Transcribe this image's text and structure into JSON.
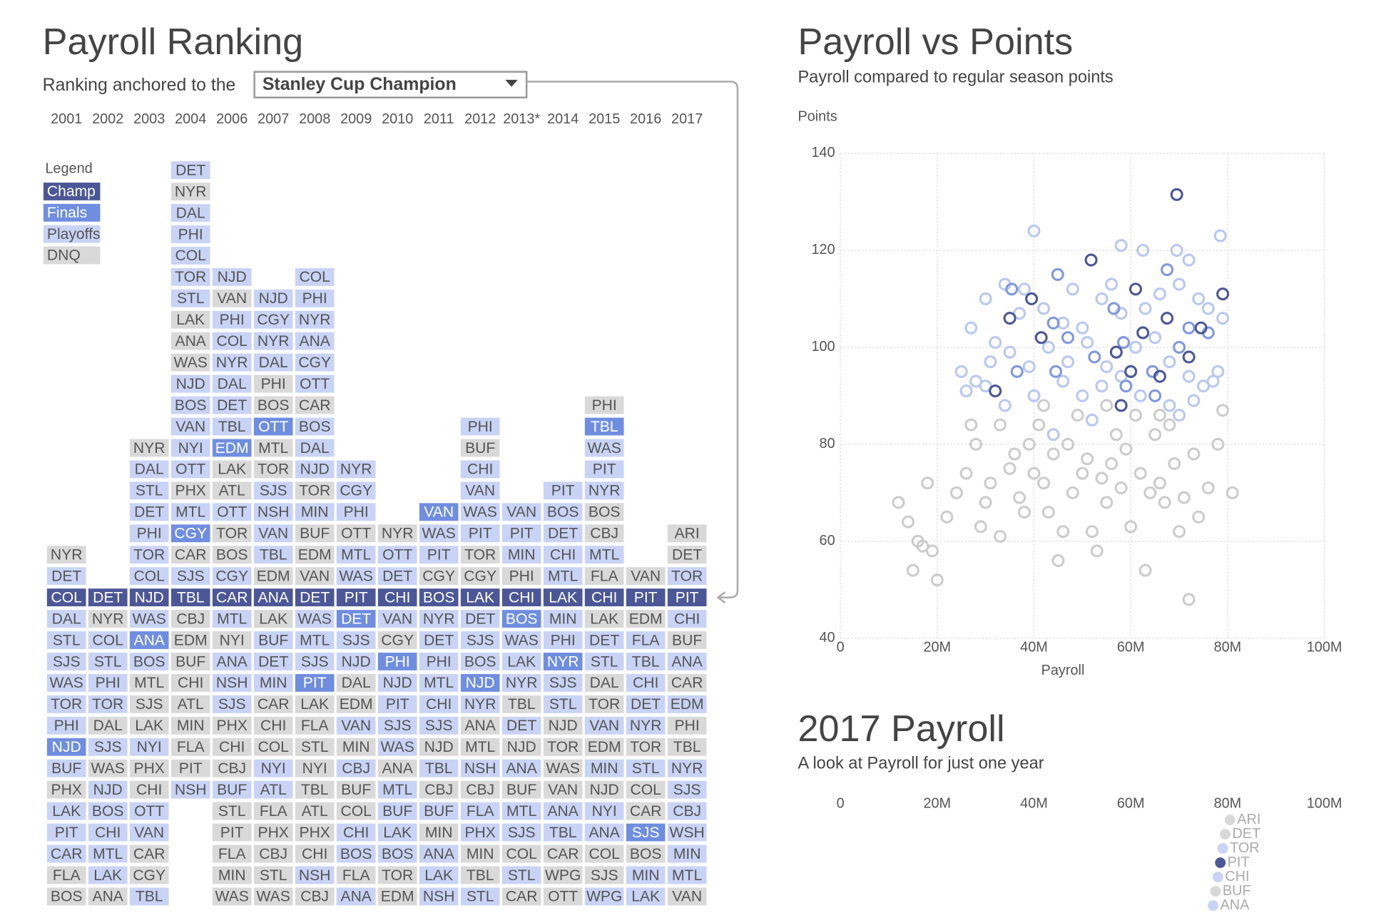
{
  "ranking": {
    "title": "Payroll Ranking",
    "anchor_label": "Ranking anchored to the",
    "anchor_option": "Stanley Cup Champion",
    "legend_title": "Legend",
    "legend": [
      {
        "label": "Champ",
        "key": "c",
        "color": "#4b5796",
        "text_color": "#ffffff"
      },
      {
        "label": "Finals",
        "key": "f",
        "color": "#6f8ee0",
        "text_color": "#ffffff"
      },
      {
        "label": "Playoffs",
        "key": "p",
        "color": "#c8d3f5",
        "text_color": "#555555"
      },
      {
        "label": "DNQ",
        "key": "d",
        "color": "#d9d9d9",
        "text_color": "#555555"
      }
    ],
    "columns": [
      {
        "year": "2001",
        "teams": [
          "NYR",
          "DET",
          "COL",
          "DAL",
          "STL",
          "SJS",
          "WAS",
          "TOR",
          "PHI",
          "NJD",
          "BUF",
          "PHX",
          "LAK",
          "PIT",
          "CAR",
          "FLA",
          "BOS"
        ],
        "status": "dpcppppppfpdpppdd"
      },
      {
        "year": "2002",
        "teams": [
          "DET",
          "NYR",
          "COL",
          "STL",
          "PHI",
          "TOR",
          "DAL",
          "SJS",
          "WAS",
          "NJD",
          "BOS",
          "CHI",
          "MTL",
          "LAK",
          "ANA"
        ],
        "status": "cdppppdpdpppppd"
      },
      {
        "year": "2003",
        "teams": [
          "NYR",
          "DAL",
          "STL",
          "DET",
          "PHI",
          "TOR",
          "COL",
          "NJD",
          "WAS",
          "ANA",
          "BOS",
          "MTL",
          "SJS",
          "LAK",
          "NYI",
          "PHX",
          "CHI",
          "OTT",
          "VAN",
          "CAR",
          "CGY",
          "TBL"
        ],
        "status": "dppppppcpfpdddpddppddp"
      },
      {
        "year": "2004",
        "teams": [
          "DET",
          "NYR",
          "DAL",
          "PHI",
          "COL",
          "TOR",
          "STL",
          "LAK",
          "ANA",
          "WAS",
          "NJD",
          "BOS",
          "VAN",
          "NYI",
          "OTT",
          "PHX",
          "MTL",
          "CGY",
          "CAR",
          "SJS",
          "TBL",
          "CBJ",
          "EDM",
          "BUF",
          "CHI",
          "ATL",
          "MIN",
          "FLA",
          "PIT",
          "NSH"
        ],
        "status": "pdpppppdddpppppdpfdpcddddddddp"
      },
      {
        "year": "2006",
        "teams": [
          "NJD",
          "VAN",
          "PHI",
          "COL",
          "NYR",
          "DAL",
          "DET",
          "TBL",
          "EDM",
          "LAK",
          "ATL",
          "OTT",
          "TOR",
          "BOS",
          "CGY",
          "CAR",
          "MTL",
          "NYI",
          "ANA",
          "NSH",
          "SJS",
          "PHX",
          "CHI",
          "CBJ",
          "BUF",
          "STL",
          "PIT",
          "FLA",
          "MIN",
          "WAS"
        ],
        "status": "pdppppppfddpddpcpdpppdddpddddd"
      },
      {
        "year": "2007",
        "teams": [
          "NJD",
          "CGY",
          "NYR",
          "DAL",
          "PHI",
          "BOS",
          "OTT",
          "MTL",
          "TOR",
          "SJS",
          "NSH",
          "VAN",
          "TBL",
          "EDM",
          "ANA",
          "LAK",
          "BUF",
          "DET",
          "MIN",
          "CAR",
          "CHI",
          "COL",
          "NYI",
          "ATL",
          "FLA",
          "PHX",
          "CBJ",
          "STL",
          "WAS"
        ],
        "status": "ppppddfddppppdcdpppdddppddddd"
      },
      {
        "year": "2008",
        "teams": [
          "COL",
          "PHI",
          "NYR",
          "ANA",
          "CGY",
          "OTT",
          "CAR",
          "BOS",
          "DAL",
          "NJD",
          "TOR",
          "MIN",
          "BUF",
          "EDM",
          "VAN",
          "DET",
          "WAS",
          "MTL",
          "SJS",
          "PIT",
          "LAK",
          "FLA",
          "STL",
          "NYI",
          "TBL",
          "ATL",
          "PHX",
          "CHI",
          "NSH",
          "CBJ"
        ],
        "status": "ppppppdpppdpdddcpppfddddddddpd"
      },
      {
        "year": "2009",
        "teams": [
          "NYR",
          "CGY",
          "PHI",
          "OTT",
          "MTL",
          "WAS",
          "PIT",
          "DET",
          "SJS",
          "NJD",
          "DAL",
          "EDM",
          "VAN",
          "MIN",
          "CBJ",
          "BUF",
          "COL",
          "CHI",
          "BOS",
          "FLA",
          "ANA"
        ],
        "status": "pppdppcfppddpdpddppdp"
      },
      {
        "year": "2010",
        "teams": [
          "NYR",
          "OTT",
          "DET",
          "CHI",
          "VAN",
          "CGY",
          "PHI",
          "NJD",
          "PIT",
          "SJS",
          "WAS",
          "ANA",
          "MTL",
          "BUF",
          "LAK",
          "BOS",
          "TOR",
          "EDM"
        ],
        "status": "dppcpdfppppdppppdd"
      },
      {
        "year": "2011",
        "teams": [
          "VAN",
          "WAS",
          "PIT",
          "CGY",
          "BOS",
          "NYR",
          "DET",
          "PHI",
          "MTL",
          "CHI",
          "SJS",
          "NJD",
          "TBL",
          "CBJ",
          "BUF",
          "MIN",
          "ANA",
          "LAK",
          "NSH"
        ],
        "status": "fppdcppppppdpdpdppp"
      },
      {
        "year": "2012",
        "teams": [
          "PHI",
          "BUF",
          "CHI",
          "VAN",
          "WAS",
          "PIT",
          "TOR",
          "CGY",
          "LAK",
          "DET",
          "SJS",
          "BOS",
          "NJD",
          "NYR",
          "ANA",
          "MTL",
          "NSH",
          "CBJ",
          "FLA",
          "PHX",
          "MIN",
          "TBL",
          "STL"
        ],
        "status": "pdppppddcpppfpddpdppddp"
      },
      {
        "year": "2013*",
        "teams": [
          "VAN",
          "PIT",
          "MIN",
          "PHI",
          "CHI",
          "BOS",
          "WAS",
          "LAK",
          "NYR",
          "TBL",
          "DET",
          "NJD",
          "ANA",
          "BUF",
          "MTL",
          "SJS",
          "COL",
          "STL",
          "CAR"
        ],
        "status": "pppdcfpppdpdpdppdpd"
      },
      {
        "year": "2014",
        "teams": [
          "PIT",
          "BOS",
          "DET",
          "CHI",
          "MTL",
          "LAK",
          "MIN",
          "PHI",
          "NYR",
          "SJS",
          "STL",
          "NJD",
          "TOR",
          "WAS",
          "VAN",
          "ANA",
          "TBL",
          "CAR",
          "WPG",
          "OTT"
        ],
        "status": "pppppcppfppddddppddd"
      },
      {
        "year": "2015",
        "teams": [
          "PHI",
          "TBL",
          "WAS",
          "PIT",
          "NYR",
          "BOS",
          "CBJ",
          "MTL",
          "FLA",
          "CHI",
          "LAK",
          "DET",
          "STL",
          "DAL",
          "TOR",
          "VAN",
          "EDM",
          "MIN",
          "NJD",
          "NYI",
          "ANA",
          "COL",
          "SJS",
          "WPG"
        ],
        "status": "dfpppddpdcdppddpdpdppddp"
      },
      {
        "year": "2016",
        "teams": [
          "VAN",
          "PIT",
          "EDM",
          "FLA",
          "TBL",
          "CHI",
          "DET",
          "NYR",
          "TOR",
          "STL",
          "COL",
          "CAR",
          "SJS",
          "BOS",
          "MIN",
          "LAK"
        ],
        "status": "dcdpppppdpddfdpp"
      },
      {
        "year": "2017",
        "teams": [
          "ARI",
          "DET",
          "TOR",
          "PIT",
          "CHI",
          "BUF",
          "ANA",
          "CAR",
          "EDM",
          "PHI",
          "TBL",
          "NYR",
          "SJS",
          "CBJ",
          "WSH",
          "MIN",
          "MTL",
          "VAN"
        ],
        "status": "ddpcpdpdpddppppppd"
      }
    ]
  },
  "chart_data": [
    {
      "type": "scatter",
      "title": "Payroll vs Points",
      "subtitle": "Payroll compared to regular season points",
      "x_label": "Payroll",
      "y_label": "Points",
      "xlim": [
        0,
        100
      ],
      "ylim": [
        40,
        140
      ],
      "xticks": [
        0,
        {
          "value": 20,
          "label": "20M"
        },
        {
          "value": 40,
          "label": "40M"
        },
        {
          "value": 60,
          "label": "60M"
        },
        {
          "value": 80,
          "label": "80M"
        },
        {
          "value": 100,
          "label": "100M"
        }
      ],
      "yticks": [
        40,
        60,
        80,
        100,
        120,
        140
      ],
      "grid": true,
      "series": [
        {
          "color": "#cccccc",
          "x": [
            12,
            16,
            17,
            15,
            19,
            20,
            22,
            24,
            26,
            28,
            29,
            30,
            31,
            33,
            35,
            36,
            37,
            38,
            39,
            40,
            41,
            42,
            43,
            44,
            45,
            46,
            47,
            48,
            49,
            50,
            51,
            52,
            53,
            54,
            55,
            56,
            57,
            58,
            59,
            60,
            61,
            62,
            63,
            64,
            65,
            66,
            67,
            68,
            69,
            70,
            71,
            72,
            73,
            74,
            76,
            78,
            79,
            81,
            14,
            18,
            33,
            42,
            55,
            66,
            27
          ],
          "y": [
            68,
            60,
            59,
            54,
            58,
            52,
            65,
            70,
            74,
            80,
            63,
            68,
            72,
            61,
            75,
            78,
            69,
            66,
            80,
            74,
            84,
            72,
            66,
            78,
            56,
            62,
            80,
            70,
            86,
            74,
            77,
            62,
            58,
            73,
            68,
            76,
            82,
            71,
            79,
            63,
            86,
            74,
            54,
            70,
            82,
            72,
            68,
            84,
            76,
            62,
            69,
            48,
            78,
            65,
            71,
            80,
            87,
            70,
            64,
            72,
            84,
            88,
            88,
            86,
            84
          ]
        },
        {
          "color": "#b9c8f0",
          "x": [
            40,
            56,
            58,
            62.5,
            69.5,
            72,
            78.5,
            34,
            38,
            48,
            66,
            74,
            30,
            27,
            32,
            37,
            42,
            46,
            50,
            54,
            58,
            63,
            70,
            76,
            79,
            25,
            28,
            31,
            35,
            39,
            43,
            47,
            51,
            55,
            61,
            65,
            68,
            72,
            75,
            78,
            26,
            30,
            34,
            40,
            46,
            50,
            54,
            58,
            62,
            68,
            73,
            77,
            44,
            52,
            70
          ],
          "y": [
            124,
            113,
            121,
            120,
            120,
            118,
            123,
            113,
            112,
            112,
            111,
            110,
            110,
            104,
            101,
            107,
            108,
            105,
            104,
            110,
            107,
            108,
            113,
            108,
            106,
            95,
            93,
            97,
            99,
            96,
            100,
            97,
            101,
            96,
            100,
            102,
            97,
            94,
            92,
            95,
            91,
            92,
            88,
            90,
            93,
            90,
            92,
            94,
            90,
            88,
            89,
            93,
            82,
            85,
            86
          ]
        },
        {
          "color": "#7f98df",
          "x": [
            67.5,
            44.9,
            35.4,
            56.5,
            44,
            36.5,
            44.5,
            58.5,
            64.5,
            72,
            59,
            70,
            47,
            52.5,
            65,
            76
          ],
          "y": [
            116,
            115,
            112,
            108,
            105,
            95,
            95,
            101,
            95,
            104,
            92,
            100,
            102,
            98,
            90,
            103
          ]
        },
        {
          "color": "#4b5796",
          "x": [
            69.5,
            51.8,
            79,
            35,
            39.5,
            61,
            67.5,
            74.5,
            41.5,
            62.5,
            57,
            72,
            60,
            32,
            58,
            66
          ],
          "y": [
            131.5,
            118,
            111,
            106,
            110,
            112,
            106,
            104,
            102,
            103,
            99,
            98,
            95,
            91,
            88,
            94
          ]
        }
      ]
    },
    {
      "type": "dot",
      "title": "2017 Payroll",
      "subtitle": "A look at Payroll for just one year",
      "xlim": [
        0,
        100
      ],
      "xticks": [
        0,
        {
          "value": 20,
          "label": "20M"
        },
        {
          "value": 40,
          "label": "40M"
        },
        {
          "value": 60,
          "label": "60M"
        },
        {
          "value": 80,
          "label": "80M"
        },
        {
          "value": 100,
          "label": "100M"
        }
      ],
      "categories": [
        "ARI",
        "DET",
        "TOR",
        "PIT",
        "CHI",
        "BUF",
        "ANA"
      ],
      "values": [
        80.5,
        79.5,
        79,
        78.5,
        78,
        77.5,
        77
      ],
      "status": "ddpcpdp"
    }
  ]
}
